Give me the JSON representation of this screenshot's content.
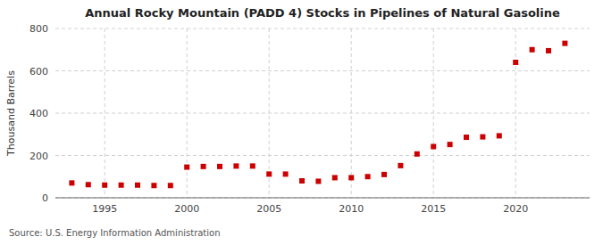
{
  "chart_data": {
    "type": "scatter",
    "title": "Annual Rocky Mountain (PADD 4) Stocks in Pipelines of Natural Gasoline",
    "y_label": "Thousand Barrels",
    "annotations": [
      "Source: U.S. Energy Information Administration"
    ],
    "x": [
      1993,
      1994,
      1995,
      1996,
      1997,
      1998,
      1999,
      2000,
      2001,
      2002,
      2003,
      2004,
      2005,
      2006,
      2007,
      2008,
      2009,
      2010,
      2011,
      2012,
      2013,
      2014,
      2015,
      2016,
      2017,
      2018,
      2019,
      2020,
      2021,
      2022,
      2023
    ],
    "values": [
      70,
      62,
      60,
      60,
      60,
      58,
      58,
      145,
      148,
      148,
      150,
      150,
      112,
      112,
      80,
      78,
      95,
      95,
      100,
      110,
      152,
      207,
      242,
      252,
      286,
      288,
      293,
      640,
      700,
      695,
      730
    ],
    "color": "#cc0000",
    "marker": "square",
    "xlim": [
      1992,
      2024.5
    ],
    "xticks": [
      1995,
      2000,
      2005,
      2010,
      2015,
      2020
    ],
    "ylim": [
      0,
      800
    ],
    "yticks": [
      0,
      200,
      400,
      600,
      800
    ],
    "grid": true
  }
}
